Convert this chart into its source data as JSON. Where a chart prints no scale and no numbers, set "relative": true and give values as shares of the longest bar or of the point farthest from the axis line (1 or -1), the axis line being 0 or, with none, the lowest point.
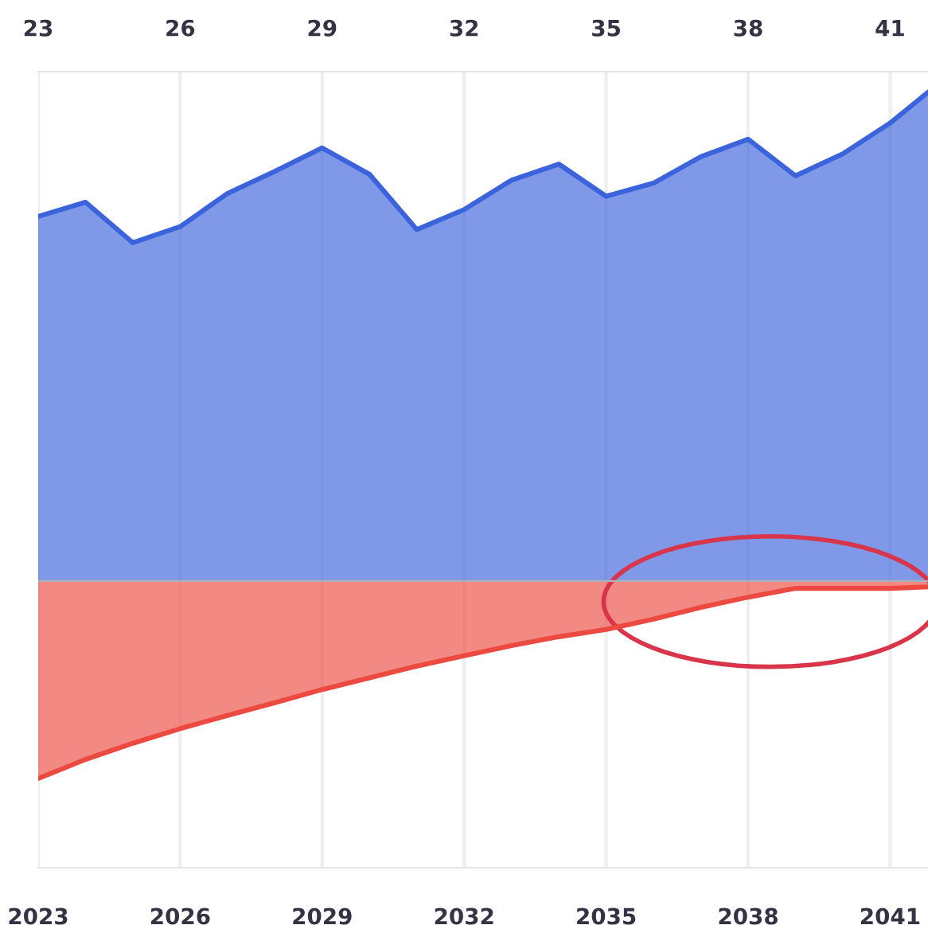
{
  "chart_data": {
    "type": "area",
    "relative": true,
    "x": [
      2023,
      2024,
      2025,
      2026,
      2027,
      2028,
      2029,
      2030,
      2031,
      2032,
      2033,
      2034,
      2035,
      2036,
      2037,
      2038,
      2039,
      2040,
      2041,
      2041.8
    ],
    "series": [
      {
        "color": "#3b63db",
        "values": [
          0.746,
          0.775,
          0.692,
          0.725,
          0.793,
          0.838,
          0.886,
          0.832,
          0.719,
          0.76,
          0.82,
          0.853,
          0.787,
          0.814,
          0.868,
          0.904,
          0.829,
          0.874,
          0.937,
          1
        ]
      },
      {
        "color": "#ec4a40",
        "values": [
          -0.404,
          -0.365,
          -0.332,
          -0.302,
          -0.275,
          -0.249,
          -0.222,
          -0.198,
          -0.174,
          -0.153,
          -0.132,
          -0.114,
          -0.099,
          -0.078,
          -0.054,
          -0.033,
          -0.015,
          -0.015,
          -0.015,
          -0.012
        ]
      }
    ],
    "xlim": [
      2023,
      2041.8
    ],
    "xticks": [
      2023,
      2026,
      2029,
      2032,
      2035,
      2038,
      2041
    ],
    "x2lim": [
      2023,
      2041.8
    ],
    "x2ticks": [
      {
        "value": 2023,
        "label": "23"
      },
      {
        "value": 2026,
        "label": "26"
      },
      {
        "value": 2029,
        "label": "29"
      },
      {
        "value": 2032,
        "label": "32"
      },
      {
        "value": 2035,
        "label": "35"
      },
      {
        "value": 2038,
        "label": "38"
      },
      {
        "value": 2041,
        "label": "41"
      }
    ],
    "tick_labels": "x",
    "grid": "x",
    "legend": false
  }
}
